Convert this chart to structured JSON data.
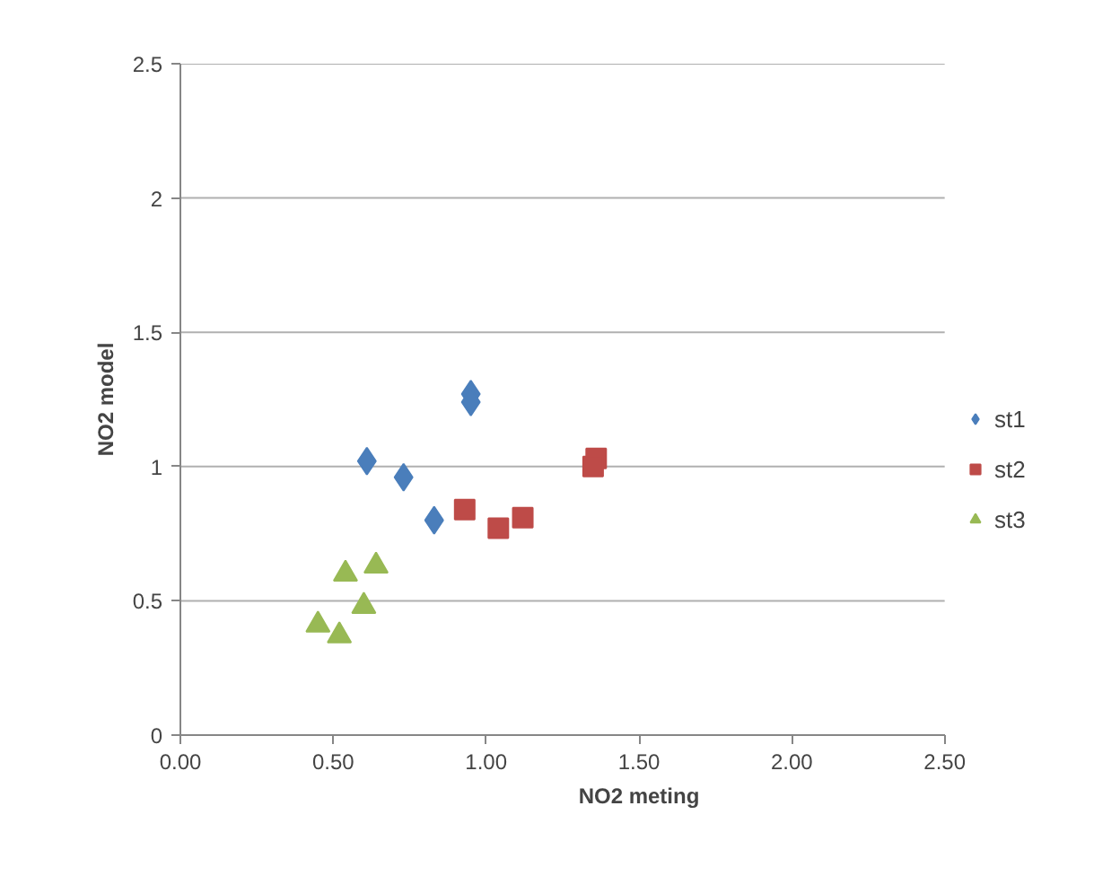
{
  "chart_data": {
    "type": "scatter",
    "xlabel": "NO2 meting",
    "ylabel": "NO2 model",
    "xlim": [
      0,
      2.5
    ],
    "ylim": [
      0,
      2.5
    ],
    "xticks": [
      {
        "value": 0,
        "label": "0.00"
      },
      {
        "value": 0.5,
        "label": "0.50"
      },
      {
        "value": 1,
        "label": "1.00"
      },
      {
        "value": 1.5,
        "label": "1.50"
      },
      {
        "value": 2,
        "label": "2.00"
      },
      {
        "value": 2.5,
        "label": "2.50"
      }
    ],
    "yticks": [
      0,
      0.5,
      1,
      1.5,
      2,
      2.5
    ],
    "grid": "y",
    "legend": "right",
    "series": [
      {
        "name": "st1",
        "color": "#4a7ebb",
        "marker": "diamond",
        "x": [
          0.95,
          0.95,
          0.61,
          0.73,
          0.83
        ],
        "values": [
          1.27,
          1.24,
          1.02,
          0.96,
          0.8
        ]
      },
      {
        "name": "st2",
        "color": "#be4b48",
        "marker": "square",
        "x": [
          0.93,
          1.04,
          1.12,
          1.36,
          1.35
        ],
        "values": [
          0.84,
          0.77,
          0.81,
          1.03,
          1.0
        ]
      },
      {
        "name": "st3",
        "color": "#98b954",
        "marker": "triangle",
        "x": [
          0.54,
          0.64,
          0.6,
          0.45,
          0.52
        ],
        "values": [
          0.6,
          0.63,
          0.48,
          0.41,
          0.37
        ]
      }
    ]
  }
}
